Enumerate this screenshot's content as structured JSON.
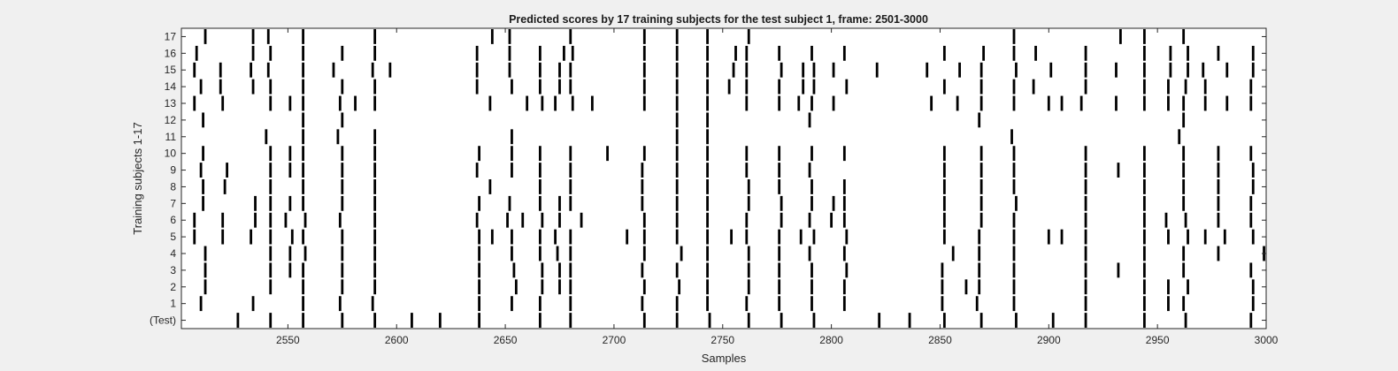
{
  "chart_data": {
    "type": "heatmap",
    "title": "Predicted scores by 17 training subjects for the test subject 1, frame: 2501-3000",
    "xlabel": "Samples",
    "ylabel": "Training subjects 1-17",
    "xlim": [
      2501,
      3000
    ],
    "x_ticks": [
      2550,
      2600,
      2650,
      2700,
      2750,
      2800,
      2850,
      2900,
      2950,
      3000
    ],
    "rows": [
      "(Test)",
      "1",
      "2",
      "3",
      "4",
      "5",
      "6",
      "7",
      "8",
      "9",
      "10",
      "11",
      "12",
      "13",
      "14",
      "15",
      "16",
      "17"
    ],
    "grid": false,
    "colors": {
      "background": "#f0f0f0",
      "plot_area": "#ffffff",
      "marker": "#000000"
    },
    "events": {
      "(Test)": [
        2527,
        2542,
        2557,
        2575,
        2590,
        2607,
        2620,
        2638,
        2666,
        2680,
        2714,
        2729,
        2744,
        2762,
        2777,
        2792,
        2822,
        2836,
        2852,
        2869,
        2885,
        2902,
        2917,
        2944,
        2963,
        2993
      ],
      "1": [
        2510,
        2534,
        2557,
        2574,
        2589,
        2638,
        2653,
        2666,
        2680,
        2713,
        2729,
        2743,
        2761,
        2776,
        2791,
        2806,
        2851,
        2867,
        2884,
        2917,
        2944,
        2955,
        2962,
        2994
      ],
      "2": [
        2512,
        2542,
        2557,
        2575,
        2590,
        2638,
        2655,
        2667,
        2675,
        2680,
        2714,
        2730,
        2743,
        2762,
        2776,
        2791,
        2806,
        2851,
        2862,
        2868,
        2884,
        2917,
        2944,
        2955,
        2964,
        2994
      ],
      "3": [
        2512,
        2542,
        2551,
        2557,
        2575,
        2590,
        2638,
        2654,
        2667,
        2675,
        2680,
        2713,
        2729,
        2743,
        2762,
        2776,
        2791,
        2807,
        2851,
        2868,
        2884,
        2917,
        2932,
        2944,
        2962,
        2993
      ],
      "4": [
        2512,
        2542,
        2551,
        2558,
        2575,
        2590,
        2638,
        2653,
        2666,
        2674,
        2680,
        2714,
        2731,
        2743,
        2762,
        2776,
        2790,
        2806,
        2856,
        2868,
        2884,
        2917,
        2944,
        2962,
        2978,
        2999
      ],
      "5": [
        2507,
        2520,
        2533,
        2542,
        2552,
        2557,
        2575,
        2590,
        2638,
        2644,
        2653,
        2666,
        2673,
        2680,
        2706,
        2714,
        2729,
        2743,
        2754,
        2761,
        2776,
        2786,
        2792,
        2807,
        2852,
        2868,
        2884,
        2900,
        2906,
        2917,
        2944,
        2955,
        2964,
        2972,
        2981,
        2994
      ],
      "6": [
        2507,
        2520,
        2535,
        2542,
        2549,
        2558,
        2574,
        2590,
        2637,
        2651,
        2658,
        2667,
        2675,
        2685,
        2714,
        2729,
        2743,
        2761,
        2777,
        2790,
        2800,
        2806,
        2852,
        2869,
        2884,
        2917,
        2944,
        2954,
        2963,
        2978,
        2993
      ],
      "7": [
        2511,
        2535,
        2542,
        2551,
        2557,
        2575,
        2590,
        2638,
        2652,
        2666,
        2675,
        2680,
        2713,
        2729,
        2743,
        2762,
        2777,
        2791,
        2801,
        2806,
        2852,
        2869,
        2885,
        2917,
        2944,
        2962,
        2978,
        2993
      ],
      "8": [
        2511,
        2521,
        2542,
        2557,
        2575,
        2590,
        2643,
        2666,
        2680,
        2713,
        2729,
        2743,
        2762,
        2776,
        2791,
        2806,
        2852,
        2869,
        2884,
        2917,
        2944,
        2962,
        2978,
        2994
      ],
      "9": [
        2510,
        2522,
        2542,
        2551,
        2557,
        2575,
        2590,
        2637,
        2653,
        2666,
        2680,
        2713,
        2729,
        2743,
        2761,
        2776,
        2790,
        2852,
        2869,
        2884,
        2917,
        2932,
        2944,
        2962,
        2978,
        2994
      ],
      "10": [
        2511,
        2542,
        2551,
        2557,
        2575,
        2590,
        2638,
        2653,
        2666,
        2680,
        2697,
        2714,
        2729,
        2743,
        2761,
        2776,
        2791,
        2806,
        2852,
        2869,
        2884,
        2917,
        2944,
        2962,
        2978,
        2993
      ],
      "11": [
        2540,
        2557,
        2573,
        2590,
        2653,
        2729,
        2743,
        2883,
        2960
      ],
      "12": [
        2511,
        2557,
        2575,
        2729,
        2743,
        2790,
        2868,
        2962
      ],
      "13": [
        2507,
        2520,
        2542,
        2551,
        2557,
        2574,
        2581,
        2590,
        2643,
        2660,
        2667,
        2673,
        2681,
        2690,
        2714,
        2729,
        2743,
        2761,
        2776,
        2785,
        2791,
        2801,
        2846,
        2858,
        2869,
        2884,
        2900,
        2906,
        2915,
        2931,
        2944,
        2955,
        2962,
        2972,
        2982,
        2993
      ],
      "14": [
        2510,
        2519,
        2534,
        2542,
        2557,
        2575,
        2590,
        2637,
        2653,
        2666,
        2675,
        2680,
        2714,
        2729,
        2743,
        2753,
        2761,
        2776,
        2787,
        2792,
        2807,
        2852,
        2869,
        2884,
        2893,
        2917,
        2944,
        2955,
        2963,
        2972,
        2993
      ],
      "15": [
        2507,
        2519,
        2533,
        2541,
        2557,
        2571,
        2589,
        2597,
        2637,
        2652,
        2666,
        2675,
        2680,
        2714,
        2729,
        2743,
        2755,
        2761,
        2777,
        2787,
        2792,
        2801,
        2821,
        2844,
        2859,
        2869,
        2885,
        2901,
        2917,
        2931,
        2944,
        2956,
        2964,
        2971,
        2982,
        2994
      ],
      "16": [
        2508,
        2534,
        2542,
        2557,
        2575,
        2590,
        2637,
        2652,
        2666,
        2677,
        2681,
        2714,
        2729,
        2743,
        2756,
        2761,
        2776,
        2791,
        2806,
        2852,
        2870,
        2884,
        2894,
        2917,
        2944,
        2956,
        2964,
        2978,
        2994
      ],
      "17": [
        2512,
        2534,
        2541,
        2557,
        2590,
        2644,
        2652,
        2680,
        2714,
        2729,
        2743,
        2762,
        2884,
        2933,
        2944,
        2962
      ]
    }
  }
}
